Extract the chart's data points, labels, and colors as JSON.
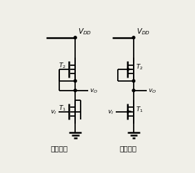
{
  "bg_color": "#f0efe8",
  "line_color": "black",
  "lw": 1.3,
  "title1": "实际电路",
  "title2": "简化电路",
  "label_vdd": "$V_{DD}$",
  "label_vo": "$v_O$",
  "label_vi": "$v_I$",
  "label_t1": "$T_1$",
  "label_t2": "$T_2$",
  "font_size": 7.5,
  "label_font_size": 6.5
}
